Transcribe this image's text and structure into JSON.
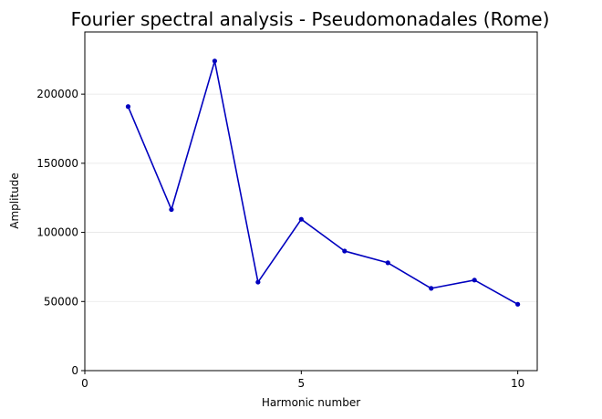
{
  "chart_data": {
    "type": "line",
    "title": "Fourier spectral analysis - Pseudomonadales (Rome)",
    "xlabel": "Harmonic number",
    "ylabel": "Amplitude",
    "xlim": [
      0,
      10.45
    ],
    "ylim": [
      0,
      245000
    ],
    "x_ticks": [
      0,
      5,
      10
    ],
    "x_tick_labels": [
      "0",
      "5",
      "10"
    ],
    "y_ticks": [
      0,
      50000,
      100000,
      150000,
      200000
    ],
    "y_tick_labels": [
      "0",
      "50000",
      "100000",
      "150000",
      "200000"
    ],
    "grid": "horizontal",
    "series": [
      {
        "name": "Amplitude",
        "color": "#0000bf",
        "x": [
          1,
          2,
          3,
          4,
          5,
          6,
          7,
          8,
          9,
          10
        ],
        "values": [
          191000,
          116500,
          224000,
          64000,
          109500,
          86500,
          78000,
          59500,
          65500,
          48000
        ]
      }
    ]
  }
}
